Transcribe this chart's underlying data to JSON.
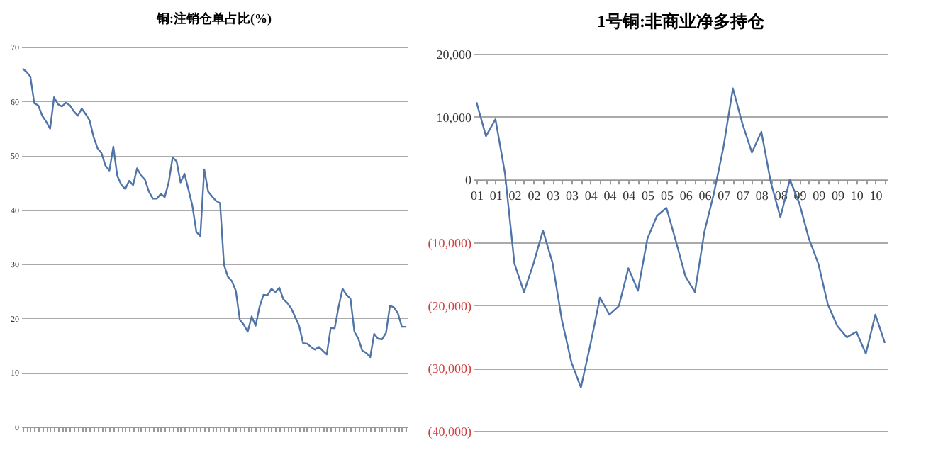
{
  "chart_data": [
    {
      "type": "line",
      "title": "铜:注销仓单占比(%)",
      "color": "#4f74a8",
      "grid": "y",
      "tick_labels": "y",
      "categories": [
        null,
        null,
        null,
        null,
        null,
        null,
        null,
        null,
        null,
        null,
        null,
        null,
        null,
        null,
        null,
        null,
        null,
        null,
        null,
        null,
        null,
        null,
        null,
        null,
        null,
        null,
        null,
        null,
        null,
        null,
        null,
        null,
        null,
        null,
        null,
        null,
        null,
        null,
        null,
        null,
        null,
        null,
        null,
        null,
        null,
        null,
        null,
        null,
        null,
        null,
        null,
        null,
        null,
        null,
        null,
        null,
        null,
        null,
        null,
        null,
        null,
        null,
        null,
        null,
        null,
        null,
        null,
        null,
        null,
        null,
        null,
        null,
        null,
        null,
        null,
        null,
        null,
        null,
        null,
        null,
        null,
        null,
        null,
        null,
        null,
        null,
        null,
        null,
        null,
        null,
        null,
        null,
        null,
        null,
        null,
        null,
        null,
        null
      ],
      "values": [
        66.0,
        65.4,
        64.5,
        59.6,
        59.2,
        57.3,
        56.2,
        54.9,
        60.7,
        59.4,
        59.0,
        59.7,
        59.2,
        58.1,
        57.3,
        58.6,
        57.6,
        56.4,
        53.4,
        51.3,
        50.4,
        48.1,
        47.2,
        51.6,
        46.2,
        44.6,
        43.8,
        45.3,
        44.5,
        47.6,
        46.3,
        45.5,
        43.3,
        42.0,
        42.0,
        42.9,
        42.3,
        45.0,
        49.6,
        48.9,
        45.0,
        46.6,
        43.7,
        40.7,
        35.9,
        35.1,
        47.4,
        43.3,
        42.4,
        41.6,
        41.2,
        29.8,
        27.6,
        26.8,
        25.0,
        19.7,
        18.8,
        17.5,
        20.3,
        18.6,
        22.1,
        24.3,
        24.2,
        25.4,
        24.8,
        25.6,
        23.5,
        22.8,
        21.8,
        20.2,
        18.6,
        15.4,
        15.3,
        14.7,
        14.2,
        14.7,
        14.0,
        13.3,
        18.2,
        18.1,
        22.1,
        25.4,
        24.3,
        23.6,
        17.5,
        16.2,
        14.0,
        13.6,
        12.8,
        17.1,
        16.2,
        16.1,
        17.3,
        22.3,
        22.0,
        20.9,
        18.4,
        18.4
      ],
      "ylim": [
        0,
        70
      ],
      "yticks": [
        0,
        10,
        20,
        30,
        40,
        50,
        60,
        70
      ]
    },
    {
      "type": "line",
      "title": "1号铜:非商业净多持仓",
      "color": "#4f74a8",
      "grid": "y",
      "categories": [
        "01",
        null,
        "01",
        null,
        "02",
        null,
        "02",
        null,
        "03",
        null,
        "03",
        null,
        "04",
        null,
        "04",
        null,
        "04",
        null,
        "05",
        null,
        "05",
        null,
        "06",
        null,
        "06",
        null,
        "07",
        null,
        "07",
        null,
        "08",
        null,
        "08",
        null,
        "09",
        null,
        "09",
        null,
        "09",
        null,
        "10",
        null,
        "10",
        null
      ],
      "values": [
        12300,
        6900,
        9600,
        1000,
        -13400,
        -17900,
        -13400,
        -8100,
        -13200,
        -22400,
        -29100,
        -33100,
        -26200,
        -18800,
        -21500,
        -20100,
        -14100,
        -17700,
        -9400,
        -5800,
        -4500,
        -9800,
        -15400,
        -17900,
        -8300,
        -2200,
        5100,
        14500,
        8900,
        4300,
        7600,
        -500,
        -6000,
        0,
        -3800,
        -9400,
        -13400,
        -19900,
        -23300,
        -25100,
        -24200,
        -27700,
        -21500,
        -26000
      ],
      "ylim": [
        -40000,
        20000
      ],
      "yticks": [
        {
          "value": 20000,
          "label": "20,000"
        },
        {
          "value": 10000,
          "label": "10,000"
        },
        0,
        {
          "value": -10000,
          "label": "(10,000)"
        },
        {
          "value": -20000,
          "label": "(20,000)"
        },
        {
          "value": -30000,
          "label": "(30,000)"
        },
        {
          "value": -40000,
          "label": "(40,000)"
        }
      ]
    }
  ]
}
